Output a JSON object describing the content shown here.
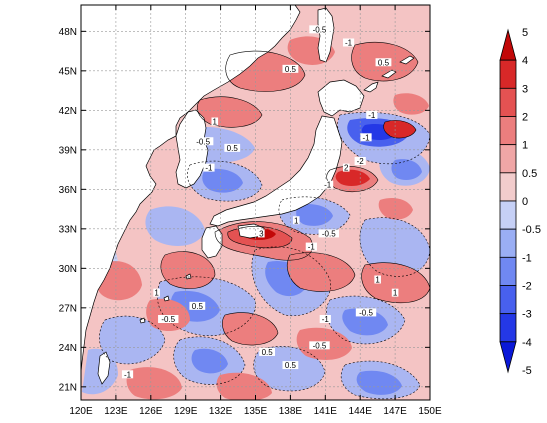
{
  "map": {
    "projection": "lat-lon cylindrical",
    "lon_range": [
      120,
      150
    ],
    "lat_range": [
      20,
      50
    ],
    "lon_ticks": [
      "120E",
      "123E",
      "126E",
      "129E",
      "132E",
      "135E",
      "138E",
      "141E",
      "144E",
      "147E",
      "150E"
    ],
    "lat_ticks": [
      "21N",
      "24N",
      "27N",
      "30N",
      "33N",
      "36N",
      "39N",
      "42N",
      "45N",
      "48N"
    ],
    "colors": {
      "land": "#ffffff",
      "coast": "#000000",
      "grid": "#999999"
    },
    "contour_labels": [
      {
        "text": "-0.5",
        "lon": 140.5,
        "lat": 48.0
      },
      {
        "text": "0.5",
        "lon": 146.0,
        "lat": 45.5
      },
      {
        "text": "-1",
        "lon": 143.0,
        "lat": 47.0
      },
      {
        "text": "0.5",
        "lon": 138.0,
        "lat": 45.0
      },
      {
        "text": "1",
        "lon": 131.5,
        "lat": 41.0
      },
      {
        "text": "-0.5",
        "lon": 130.5,
        "lat": 39.5
      },
      {
        "text": "0.5",
        "lon": 133.0,
        "lat": 39.0
      },
      {
        "text": "-1",
        "lon": 131.0,
        "lat": 37.5
      },
      {
        "text": "-1",
        "lon": 145.0,
        "lat": 41.5
      },
      {
        "text": "-1",
        "lon": 144.5,
        "lat": 39.8
      },
      {
        "text": "-2",
        "lon": 144.0,
        "lat": 38.0
      },
      {
        "text": "-1",
        "lon": 141.2,
        "lat": 36.2
      },
      {
        "text": "2",
        "lon": 142.8,
        "lat": 37.5
      },
      {
        "text": "3",
        "lon": 135.5,
        "lat": 32.5
      },
      {
        "text": "-0.5",
        "lon": 141.3,
        "lat": 32.5
      },
      {
        "text": "-1",
        "lon": 139.8,
        "lat": 31.5
      },
      {
        "text": "1",
        "lon": 138.5,
        "lat": 33.5
      },
      {
        "text": "1",
        "lon": 126.5,
        "lat": 28.0
      },
      {
        "text": "0.5",
        "lon": 130.0,
        "lat": 27.0
      },
      {
        "text": "-0.5",
        "lon": 127.5,
        "lat": 26.0
      },
      {
        "text": "1",
        "lon": 145.5,
        "lat": 29.0
      },
      {
        "text": "-0.5",
        "lon": 144.5,
        "lat": 26.5
      },
      {
        "text": "-1",
        "lon": 141.0,
        "lat": 26.0
      },
      {
        "text": "0.5",
        "lon": 136.0,
        "lat": 23.5
      },
      {
        "text": "-1",
        "lon": 124.0,
        "lat": 21.8
      },
      {
        "text": "0.5",
        "lon": 138.0,
        "lat": 22.5
      },
      {
        "text": "1",
        "lon": 147.0,
        "lat": 28.0
      },
      {
        "text": "-0.5",
        "lon": 140.5,
        "lat": 24.0
      }
    ]
  },
  "colorbar": {
    "levels": [
      "-5",
      "-4",
      "-3",
      "-2",
      "-1",
      "-0.5",
      "0",
      "0.5",
      "1",
      "2",
      "3",
      "4",
      "5"
    ],
    "colors": [
      "#0a18d8",
      "#2438e6",
      "#4860ee",
      "#7088f2",
      "#9aaef4",
      "#c6d0f6",
      "#f2cccc",
      "#f0a6a6",
      "#ec7e7e",
      "#e45252",
      "#d82828",
      "#c20808"
    ]
  }
}
